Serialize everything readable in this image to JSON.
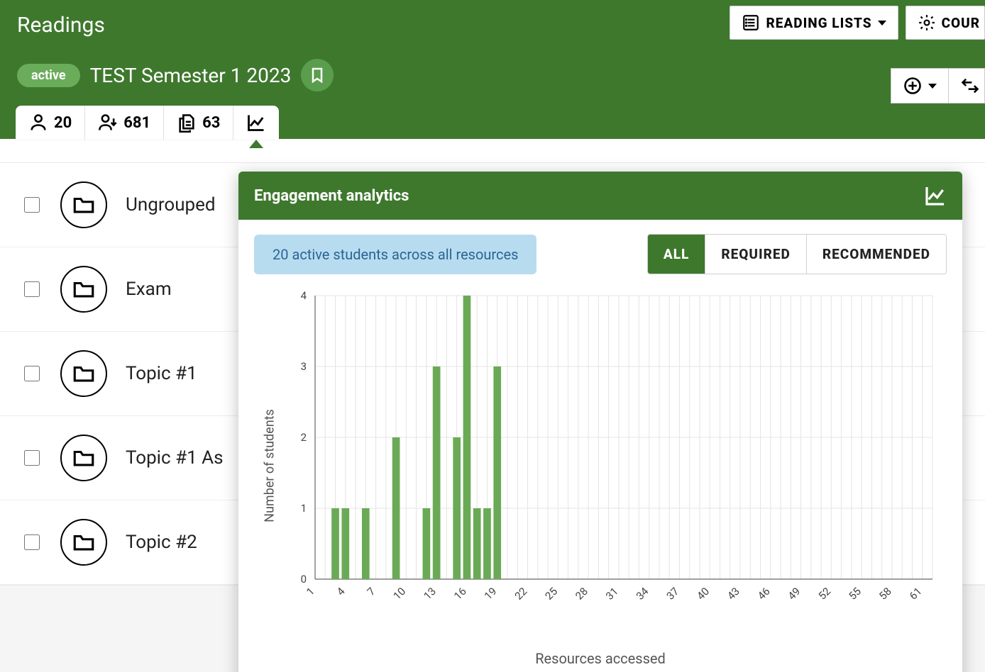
{
  "header": {
    "page_title": "Readings",
    "reading_lists_label": "READING LISTS",
    "course_settings_label": "COUR",
    "status_pill": "active",
    "course_title": "TEST Semester 1 2023",
    "stats": {
      "students": "20",
      "views": "681",
      "documents": "63"
    }
  },
  "list": {
    "items": [
      {
        "label": "Ungrouped"
      },
      {
        "label": "Exam"
      },
      {
        "label": "Topic #1"
      },
      {
        "label": "Topic #1 As"
      },
      {
        "label": "Topic #2"
      }
    ]
  },
  "analytics": {
    "title": "Engagement analytics",
    "info_text": "20 active students across all resources",
    "tabs": [
      "ALL",
      "REQUIRED",
      "RECOMMENDED"
    ],
    "active_tab": 0,
    "chart": {
      "type": "bar",
      "ylabel": "Number of students",
      "xlabel": "Resources accessed",
      "y_max": 4,
      "y_ticks": [
        0,
        1,
        2,
        3,
        4
      ],
      "x_min": 1,
      "x_max": 62,
      "x_ticks": [
        1,
        4,
        7,
        10,
        13,
        16,
        19,
        22,
        25,
        28,
        31,
        34,
        37,
        40,
        43,
        46,
        49,
        52,
        55,
        58,
        61
      ],
      "bars": [
        {
          "x": 3,
          "y": 1
        },
        {
          "x": 4,
          "y": 1
        },
        {
          "x": 6,
          "y": 1
        },
        {
          "x": 9,
          "y": 2
        },
        {
          "x": 12,
          "y": 1
        },
        {
          "x": 13,
          "y": 3
        },
        {
          "x": 15,
          "y": 2
        },
        {
          "x": 16,
          "y": 4
        },
        {
          "x": 17,
          "y": 1
        },
        {
          "x": 18,
          "y": 1
        },
        {
          "x": 19,
          "y": 3
        }
      ],
      "bar_color": "#6aaa56",
      "grid_color": "#e4e4e4",
      "axis_color": "#666666",
      "label_fontsize": 18,
      "tick_fontsize": 15
    }
  }
}
